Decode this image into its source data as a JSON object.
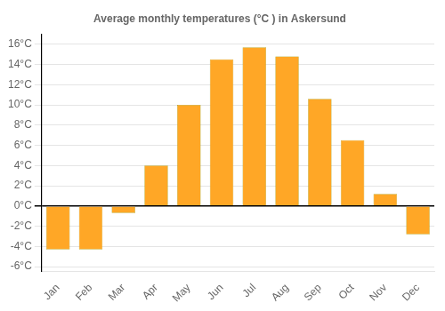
{
  "chart_data": {
    "type": "bar",
    "title": "Average monthly temperatures (°C ) in Askersund",
    "categories": [
      "Jan",
      "Feb",
      "Mar",
      "Apr",
      "May",
      "Jun",
      "Jul",
      "Aug",
      "Sep",
      "Oct",
      "Nov",
      "Dec"
    ],
    "values": [
      -4.3,
      -4.3,
      -0.7,
      4.0,
      10.0,
      14.5,
      15.7,
      14.8,
      10.6,
      6.5,
      1.2,
      -2.8
    ],
    "color": "#FFA726",
    "ylim": [
      -6.5,
      17
    ],
    "yticks": [
      {
        "value": -6,
        "label": "-6°C"
      },
      {
        "value": -4,
        "label": "-4°C"
      },
      {
        "value": -2,
        "label": "-2°C"
      },
      {
        "value": 0,
        "label": "0°C"
      },
      {
        "value": 2,
        "label": "2°C"
      },
      {
        "value": 4,
        "label": "4°C"
      },
      {
        "value": 6,
        "label": "6°C"
      },
      {
        "value": 8,
        "label": "8°C"
      },
      {
        "value": 10,
        "label": "10°C"
      },
      {
        "value": 12,
        "label": "12°C"
      },
      {
        "value": 14,
        "label": "14°C"
      },
      {
        "value": 16,
        "label": "16°C"
      }
    ],
    "grid": true
  }
}
